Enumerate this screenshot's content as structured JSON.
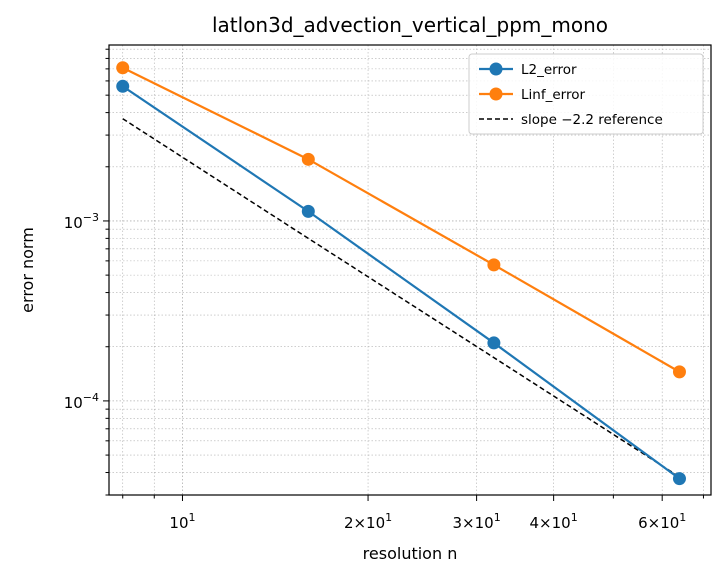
{
  "chart_data": {
    "type": "line",
    "title": "latlon3d_advection_vertical_ppm_mono",
    "xlabel": "resolution n",
    "ylabel": "error norm",
    "xscale": "log",
    "yscale": "log",
    "xlim": [
      7.6,
      72
    ],
    "ylim": [
      3e-05,
      0.0095
    ],
    "x": [
      8,
      16,
      32,
      64
    ],
    "series": [
      {
        "name": "L2_error",
        "color": "#1f77b4",
        "marker": "circle",
        "style": "solid",
        "values": [
          0.0056,
          0.00113,
          0.00021,
          3.7e-05
        ]
      },
      {
        "name": "Linf_error",
        "color": "#ff7f0e",
        "marker": "circle",
        "style": "solid",
        "values": [
          0.0071,
          0.0022,
          0.00057,
          0.000145
        ]
      },
      {
        "name": "slope −2.2 reference",
        "color": "#000000",
        "marker": "none",
        "style": "dashed",
        "values": [
          0.0037,
          0.0008,
          0.000174,
          3.78e-05
        ]
      }
    ],
    "x_ticks": [
      {
        "value": 10,
        "label_base": "10",
        "label_exp": "1"
      },
      {
        "value": 20,
        "label_base": "2×10",
        "label_exp": "1"
      },
      {
        "value": 30,
        "label_base": "3×10",
        "label_exp": "1"
      },
      {
        "value": 40,
        "label_base": "4×10",
        "label_exp": "1"
      },
      {
        "value": 60,
        "label_base": "6×10",
        "label_exp": "1"
      }
    ],
    "y_ticks": [
      {
        "value": 0.001,
        "label_base": "10",
        "label_exp": "−3"
      },
      {
        "value": 0.0001,
        "label_base": "10",
        "label_exp": "−4"
      }
    ],
    "grid": "both (major and minor, dotted)",
    "legend_position": "top-right"
  }
}
